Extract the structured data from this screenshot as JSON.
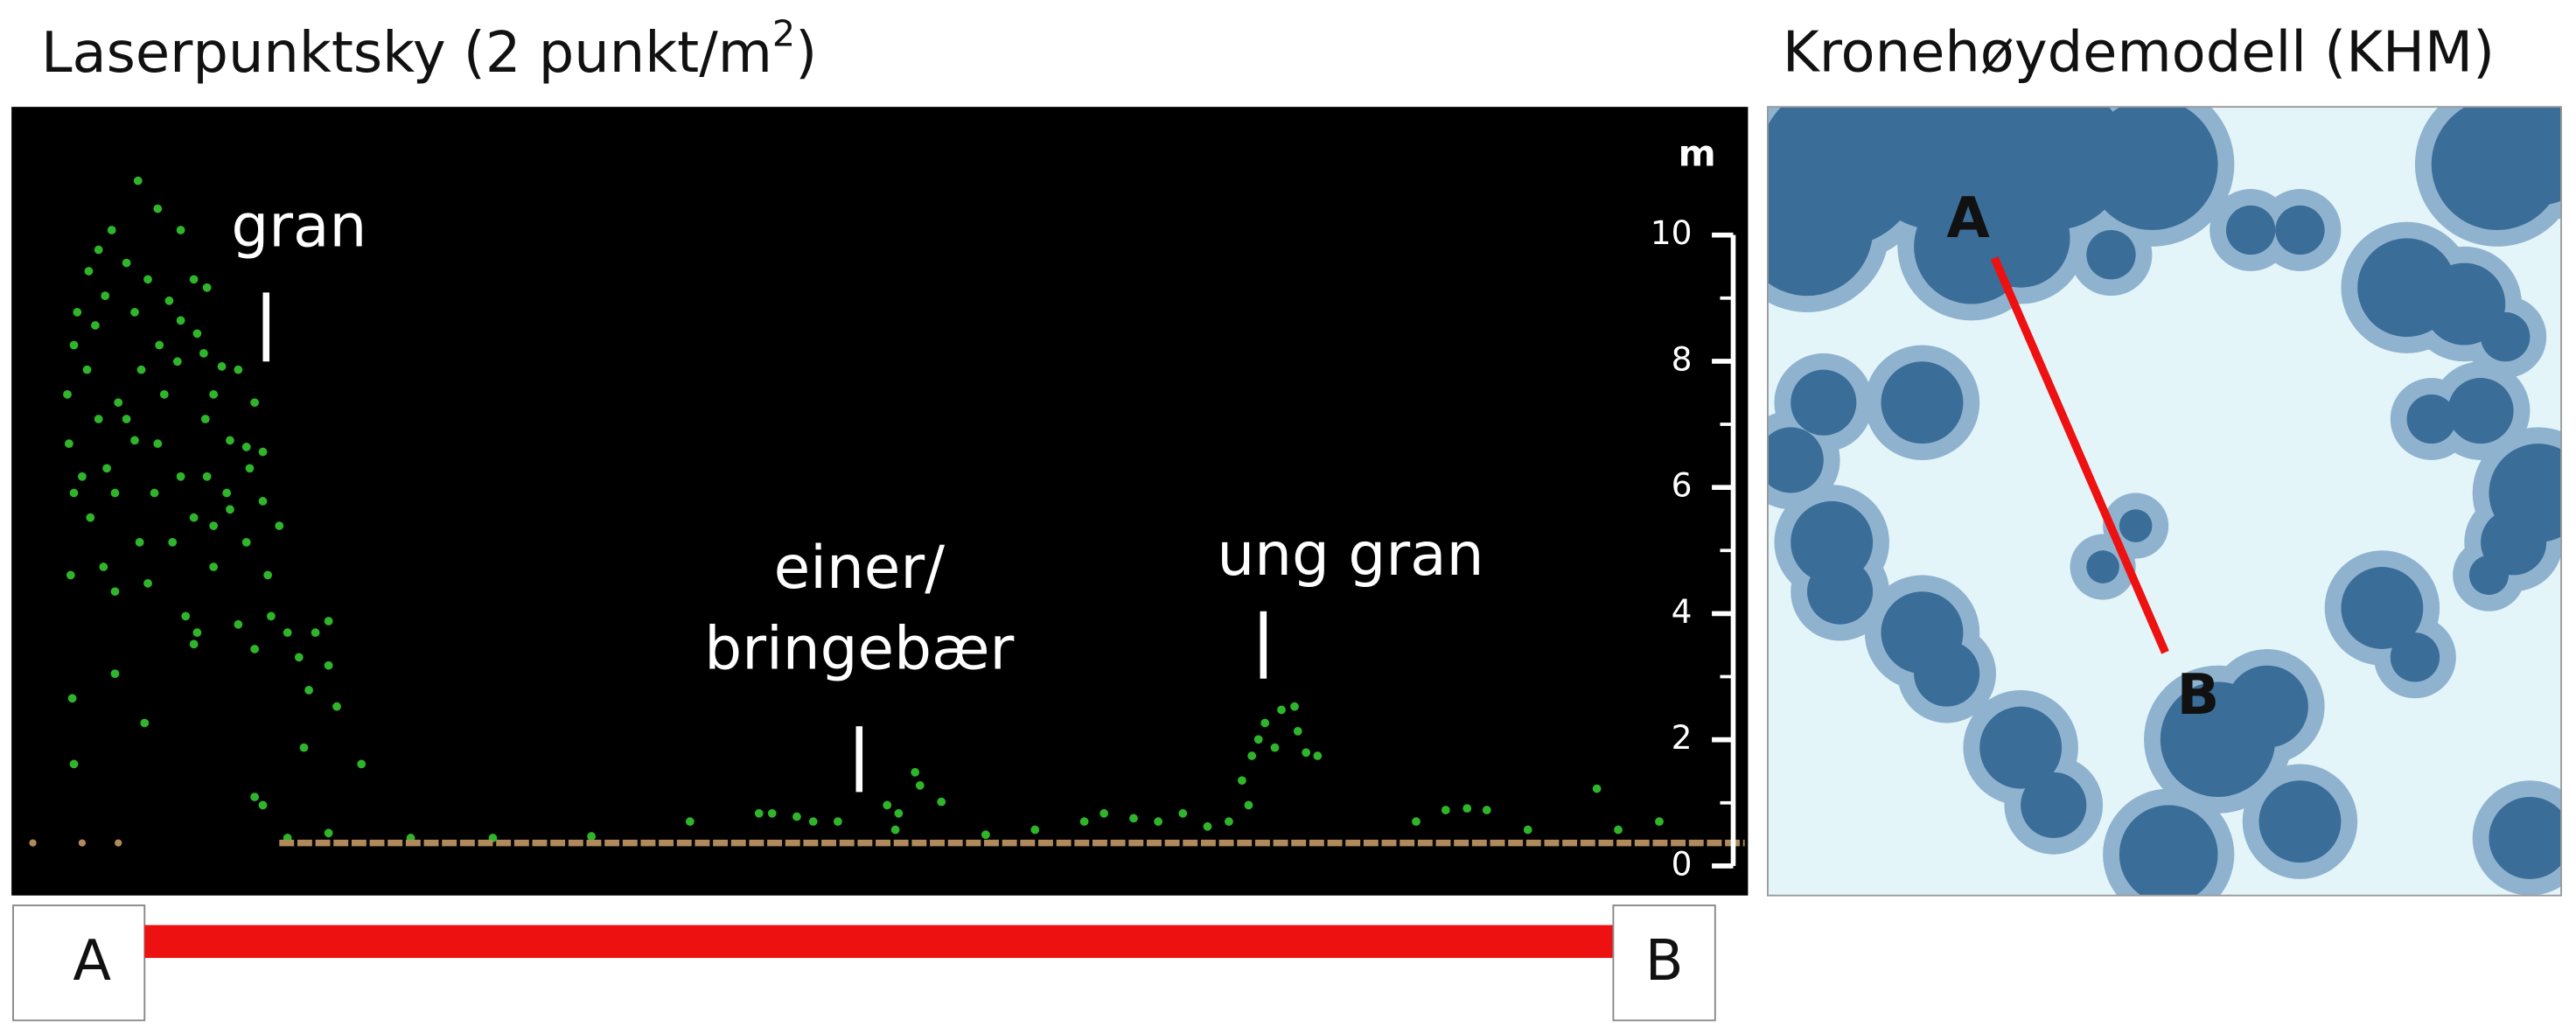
{
  "left_panel": {
    "title": {
      "text": "Laserpunktsky (2 punkt/m",
      "superscript": "2",
      "suffix": ")"
    },
    "axis": {
      "unit": "m",
      "ticks": [
        0,
        2,
        4,
        6,
        8,
        10
      ]
    },
    "annotations": [
      "gran",
      "einer/",
      "bringebær",
      "ung gran"
    ],
    "transect": {
      "start": "A",
      "end": "B"
    }
  },
  "right_panel": {
    "title": "Kronehøydemodell (KHM)",
    "transect": {
      "start": "A",
      "end": "B"
    }
  }
}
